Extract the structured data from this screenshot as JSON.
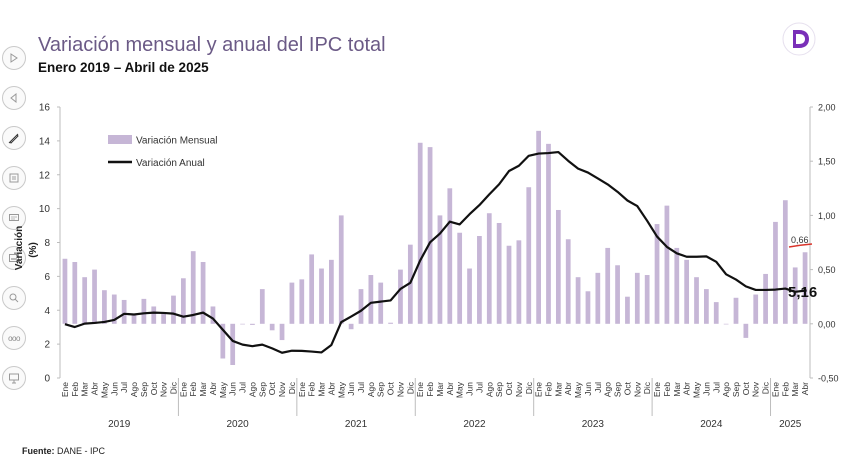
{
  "header": {
    "title": "Variación mensual y anual del IPC total",
    "subtitle": "Enero 2019 – Abril de 2025"
  },
  "footer": {
    "source_label": "Fuente:",
    "source_value": "DANE - IPC"
  },
  "toolbar": {
    "items": [
      {
        "icon": "play-icon"
      },
      {
        "icon": "back-icon"
      },
      {
        "icon": "pen-icon"
      },
      {
        "icon": "slides-icon"
      },
      {
        "icon": "screen-icon"
      },
      {
        "icon": "subtitles-icon"
      },
      {
        "icon": "zoom-icon"
      },
      {
        "icon": "more-icon"
      },
      {
        "icon": "presenter-icon"
      }
    ],
    "more_label": "ooo"
  },
  "logo": {
    "icon": "d-logo-icon",
    "letter": "D",
    "color": "#7a2fb8"
  },
  "chart_data": {
    "type": "bar+line",
    "title": "Variación mensual y anual del IPC total",
    "ylabel": "Variación\n(%)",
    "ylabel_lines": [
      "Variación",
      "(%)"
    ],
    "left_axis": {
      "min": 0,
      "max": 16,
      "ticks": [
        "0",
        "2",
        "4",
        "6",
        "8",
        "10",
        "12",
        "14",
        "16"
      ]
    },
    "right_axis": {
      "min": -0.5,
      "max": 2.0,
      "ticks": [
        "-0,50",
        "0,00",
        "0,50",
        "1,00",
        "1,50",
        "2,00"
      ]
    },
    "legend": {
      "position": "top-left",
      "bar_label": "Variación Mensual",
      "line_label": "Variación Anual"
    },
    "colors": {
      "bar": "#c6b6d6",
      "line": "#111111",
      "highlight": "#d9342b",
      "title": "#6b5a86"
    },
    "months": [
      "Ene",
      "Feb",
      "Mar",
      "Abr",
      "May",
      "Jun",
      "Jul",
      "Ago",
      "Sep",
      "Oct",
      "Nov",
      "Dic",
      "Ene",
      "Feb",
      "Mar",
      "Abr",
      "May",
      "Jun",
      "Jul",
      "Ago",
      "Sep",
      "Oct",
      "Nov",
      "Dic",
      "Ene",
      "Feb",
      "Mar",
      "Abr",
      "May",
      "Jun",
      "Jul",
      "Ago",
      "Sep",
      "Oct",
      "Nov",
      "Dic",
      "Ene",
      "Feb",
      "Mar",
      "Abr",
      "May",
      "Jun",
      "Jul",
      "Ago",
      "Sep",
      "Oct",
      "Nov",
      "Dic",
      "Ene",
      "Feb",
      "Mar",
      "Abr",
      "May",
      "Jun",
      "Jul",
      "Ago",
      "Sep",
      "Oct",
      "Nov",
      "Dic",
      "Ene",
      "Feb",
      "Mar",
      "Abr",
      "May",
      "Jun",
      "Jul",
      "Ago",
      "Sep",
      "Oct",
      "Nov",
      "Dic",
      "Ene",
      "Feb",
      "Mar",
      "Abr"
    ],
    "years": [
      {
        "label": "2019",
        "start": 0,
        "count": 12
      },
      {
        "label": "2020",
        "start": 12,
        "count": 12
      },
      {
        "label": "2021",
        "start": 24,
        "count": 12
      },
      {
        "label": "2022",
        "start": 36,
        "count": 12
      },
      {
        "label": "2023",
        "start": 48,
        "count": 12
      },
      {
        "label": "2024",
        "start": 60,
        "count": 12
      },
      {
        "label": "2025",
        "start": 72,
        "count": 4
      }
    ],
    "series": [
      {
        "name": "Variación Mensual",
        "axis": "right",
        "values": [
          0.6,
          0.57,
          0.43,
          0.5,
          0.31,
          0.27,
          0.22,
          0.09,
          0.23,
          0.16,
          0.1,
          0.26,
          0.42,
          0.67,
          0.57,
          0.16,
          -0.32,
          -0.38,
          0.0,
          -0.01,
          0.32,
          -0.06,
          -0.15,
          0.38,
          0.41,
          0.64,
          0.51,
          0.59,
          1.0,
          -0.05,
          0.32,
          0.45,
          0.38,
          0.01,
          0.5,
          0.73,
          1.67,
          1.63,
          1.0,
          1.25,
          0.84,
          0.51,
          0.81,
          1.02,
          0.93,
          0.72,
          0.77,
          1.26,
          1.78,
          1.66,
          1.05,
          0.78,
          0.43,
          0.3,
          0.47,
          0.7,
          0.54,
          0.25,
          0.47,
          0.45,
          0.92,
          1.09,
          0.7,
          0.59,
          0.43,
          0.32,
          0.2,
          0.0,
          0.24,
          -0.13,
          0.27,
          0.46,
          0.94,
          1.14,
          0.52,
          0.66
        ]
      },
      {
        "name": "Variación Anual",
        "axis": "left",
        "values": [
          3.18,
          3.01,
          3.21,
          3.25,
          3.31,
          3.43,
          3.79,
          3.75,
          3.82,
          3.86,
          3.84,
          3.8,
          3.62,
          3.72,
          3.86,
          3.51,
          2.85,
          2.19,
          1.97,
          1.88,
          1.97,
          1.75,
          1.49,
          1.61,
          1.6,
          1.56,
          1.51,
          1.95,
          3.3,
          3.63,
          3.97,
          4.44,
          4.51,
          4.58,
          5.26,
          5.62,
          6.94,
          8.01,
          8.53,
          9.23,
          9.07,
          9.67,
          10.21,
          10.84,
          11.44,
          12.22,
          12.53,
          13.12,
          13.25,
          13.28,
          13.34,
          12.82,
          12.36,
          12.13,
          11.78,
          11.43,
          10.99,
          10.48,
          10.15,
          9.28,
          8.35,
          7.74,
          7.36,
          7.16,
          7.16,
          7.18,
          6.86,
          6.12,
          5.81,
          5.41,
          5.2,
          5.2,
          5.22,
          5.28,
          5.09,
          5.16
        ]
      }
    ],
    "annotations": [
      {
        "text": "0,66",
        "series": "Variación Mensual",
        "index": 75
      },
      {
        "text": "5,16",
        "series": "Variación Anual",
        "index": 75
      }
    ]
  }
}
